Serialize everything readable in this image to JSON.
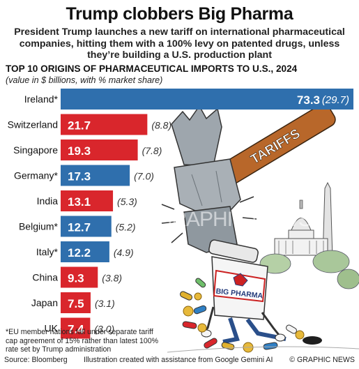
{
  "title": "Trump clobbers Big Pharma",
  "subtitle": "President Trump launches a new tariff on international pharmaceutical companies, hitting them with a 100% levy on patented drugs, unless they’re building a U.S. production plant",
  "chart_heading": "TOP 10 ORIGINS OF PHARMACEUTICAL IMPORTS TO U.S., 2024",
  "chart_subheading": "(value in $ billions, with % market share)",
  "colors": {
    "eu": "#2f6fad",
    "non_eu": "#d9262c",
    "value_text": "#ffffff",
    "share_text": "#333333"
  },
  "chart_data": {
    "type": "bar",
    "title": "TOP 10 ORIGINS OF PHARMACEUTICAL IMPORTS TO U.S., 2024",
    "subtitle": "(value in $ billions, with % market share)",
    "categories": [
      "Ireland*",
      "Switzerland",
      "Singapore",
      "Germany*",
      "India",
      "Belgium*",
      "Italy*",
      "China",
      "Japan",
      "UK"
    ],
    "values": [
      73.3,
      21.7,
      19.3,
      17.3,
      13.1,
      12.7,
      12.2,
      9.3,
      7.5,
      7.4
    ],
    "value_labels": [
      "73.3",
      "21.7",
      "19.3",
      "17.3",
      "13.1",
      "12.7",
      "12.2",
      "9.3",
      "7.5",
      "7.4"
    ],
    "shares": [
      "(29.7)",
      "(8.8)",
      "(7.8)",
      "(7.0)",
      "(5.3)",
      "(5.2)",
      "(4.9)",
      "(3.8)",
      "(3.1)",
      "(3.0)"
    ],
    "eu_member": [
      true,
      false,
      false,
      true,
      false,
      true,
      true,
      false,
      false,
      false
    ],
    "orientation": "horizontal",
    "xlim": [
      0,
      73.3
    ]
  },
  "illustration": {
    "hammer_label": "TARIFFS",
    "bottle_label": "BIG PHARMA"
  },
  "watermark": "GRAPHIC NEWS",
  "footnote": "*EU member nations fall under separate tariff cap agreement of 15% rather than latest 100% rate set by Trump administration",
  "footer": {
    "source": "Source: Bloomberg",
    "credit": "Illustration created with assistance from Google Gemini AI",
    "copyright": "© GRAPHIC NEWS"
  }
}
